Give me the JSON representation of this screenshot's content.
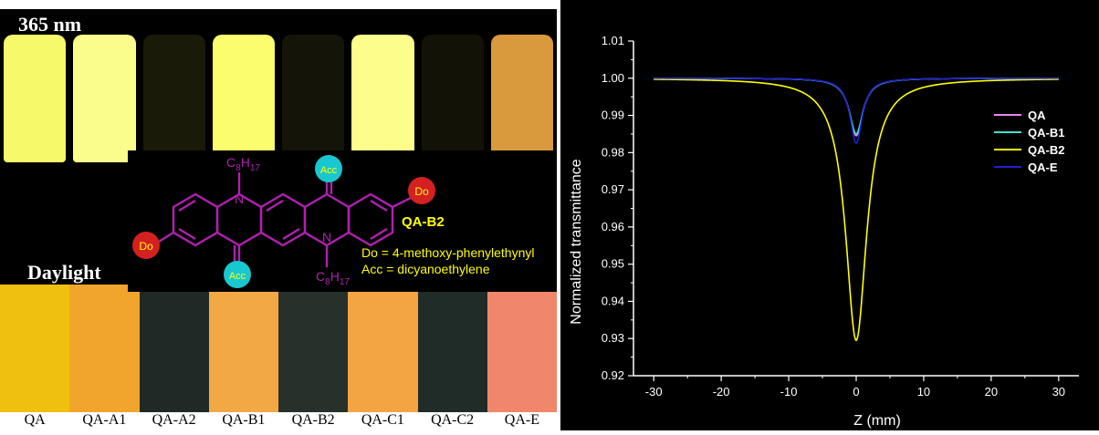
{
  "photo": {
    "label_uv": "365 nm",
    "label_daylight": "Daylight",
    "vial_labels": [
      "QA",
      "QA-A1",
      "QA-A2",
      "QA-B1",
      "QA-B2",
      "QA-C1",
      "QA-C2",
      "QA-E"
    ],
    "uv_colors": [
      "#f6f96a",
      "#fafc8c",
      "#1a1a08",
      "#fbfd6f",
      "#141408",
      "#fcfd8a",
      "#121206",
      "#d89a3c"
    ],
    "daylight_colors": [
      "#f0c010",
      "#f2a52c",
      "#1f2a26",
      "#f3a846",
      "#28302c",
      "#f3a443",
      "#1f2c28",
      "#f0876a"
    ]
  },
  "molecule": {
    "name": "QA-B2",
    "substituent_1": "C8H17",
    "donor_label": "Do",
    "acceptor_label": "Acc",
    "nitrogen_label": "N",
    "legend_do": "Do = 4-methoxy-phenylethynyl",
    "legend_acc": "Acc = dicyanoethylene",
    "colors": {
      "bond": "#b020b0",
      "donor": "#d42020",
      "acceptor": "#18c8d0",
      "text": "#ffff00"
    }
  },
  "chart_data": {
    "type": "line",
    "title": "",
    "xlabel": "Z (mm)",
    "ylabel": "Normalized transmittance",
    "xlim": [
      -33,
      33
    ],
    "ylim": [
      0.92,
      1.01
    ],
    "xticks": [
      -30,
      -20,
      -10,
      0,
      10,
      20,
      30
    ],
    "yticks": [
      0.92,
      0.93,
      0.94,
      0.95,
      0.96,
      0.97,
      0.98,
      0.99,
      1.0,
      1.01
    ],
    "grid": false,
    "legend_position": "right",
    "series": [
      {
        "name": "QA",
        "color": "#ee82ee",
        "baseline": 1.0,
        "min_value": 0.9845,
        "z0": 1.2
      },
      {
        "name": "QA-B1",
        "color": "#40e0d0",
        "baseline": 1.0,
        "min_value": 0.985,
        "z0": 1.25
      },
      {
        "name": "QA-B2",
        "color": "#ffff00",
        "baseline": 1.0,
        "min_value": 0.9295,
        "z0": 1.9
      },
      {
        "name": "QA-E",
        "color": "#2020d0",
        "baseline": 1.0,
        "min_value": 0.9825,
        "z0": 1.1
      }
    ]
  }
}
